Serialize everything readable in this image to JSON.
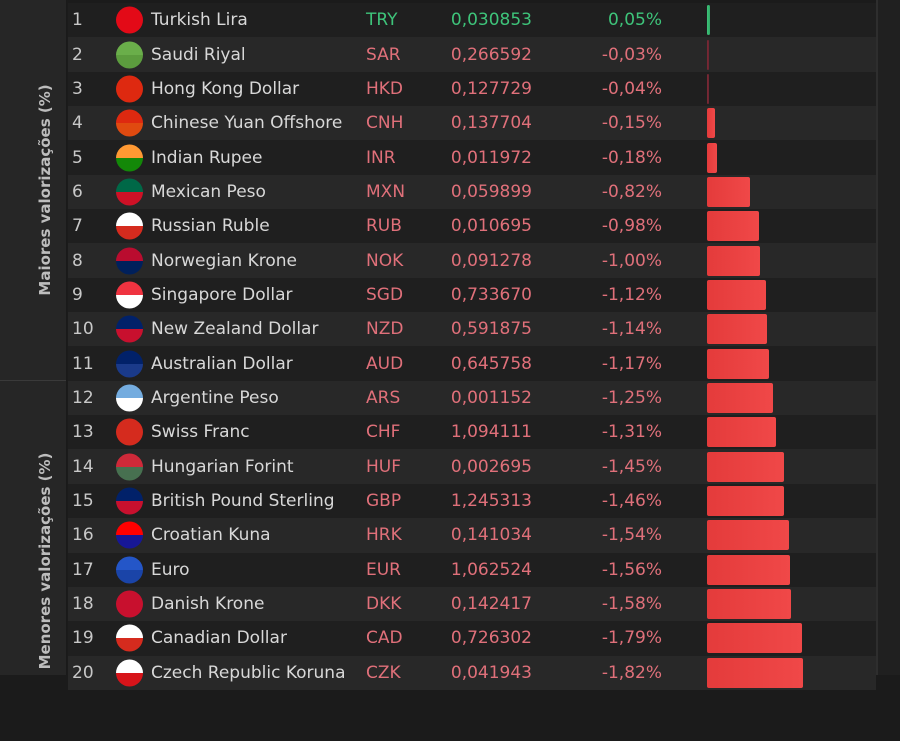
{
  "sidebar": {
    "top_group": "Maiores valorizações (%)",
    "bottom_group": "Menores valorizações (%)"
  },
  "colors": {
    "positive": "#3ec47a",
    "negative": "#e43b3b",
    "negative_text": "#e0707a"
  },
  "rows": [
    {
      "rank": "1",
      "name": "Turkish Lira",
      "code": "TRY",
      "value": "0,030853",
      "change": "0,05%",
      "pct": 0.05,
      "flag": [
        "#e30a17",
        "#e30a17"
      ]
    },
    {
      "rank": "2",
      "name": "Saudi Riyal",
      "code": "SAR",
      "value": "0,266592",
      "change": "-0,03%",
      "pct": -0.03,
      "flag": [
        "#6aae4a",
        "#5c9c3e"
      ]
    },
    {
      "rank": "3",
      "name": "Hong Kong Dollar",
      "code": "HKD",
      "value": "0,127729",
      "change": "-0,04%",
      "pct": -0.04,
      "flag": [
        "#de2910",
        "#de2910"
      ]
    },
    {
      "rank": "4",
      "name": "Chinese Yuan Offshore",
      "code": "CNH",
      "value": "0,137704",
      "change": "-0,15%",
      "pct": -0.15,
      "flag": [
        "#de2910",
        "#e04a10"
      ]
    },
    {
      "rank": "5",
      "name": "Indian Rupee",
      "code": "INR",
      "value": "0,011972",
      "change": "-0,18%",
      "pct": -0.18,
      "flag": [
        "#ff9933",
        "#138808"
      ]
    },
    {
      "rank": "6",
      "name": "Mexican Peso",
      "code": "MXN",
      "value": "0,059899",
      "change": "-0,82%",
      "pct": -0.82,
      "flag": [
        "#006847",
        "#ce1126"
      ]
    },
    {
      "rank": "7",
      "name": "Russian Ruble",
      "code": "RUB",
      "value": "0,010695",
      "change": "-0,98%",
      "pct": -0.98,
      "flag": [
        "#ffffff",
        "#d52b1e"
      ]
    },
    {
      "rank": "8",
      "name": "Norwegian Krone",
      "code": "NOK",
      "value": "0,091278",
      "change": "-1,00%",
      "pct": -1.0,
      "flag": [
        "#ba0c2f",
        "#00205b"
      ]
    },
    {
      "rank": "9",
      "name": "Singapore Dollar",
      "code": "SGD",
      "value": "0,733670",
      "change": "-1,12%",
      "pct": -1.12,
      "flag": [
        "#ef3340",
        "#ffffff"
      ]
    },
    {
      "rank": "10",
      "name": "New Zealand Dollar",
      "code": "NZD",
      "value": "0,591875",
      "change": "-1,14%",
      "pct": -1.14,
      "flag": [
        "#012169",
        "#c8102e"
      ]
    },
    {
      "rank": "11",
      "name": "Australian Dollar",
      "code": "AUD",
      "value": "0,645758",
      "change": "-1,17%",
      "pct": -1.17,
      "flag": [
        "#012169",
        "#1a3a8a"
      ]
    },
    {
      "rank": "12",
      "name": "Argentine Peso",
      "code": "ARS",
      "value": "0,001152",
      "change": "-1,25%",
      "pct": -1.25,
      "flag": [
        "#74acdf",
        "#ffffff"
      ]
    },
    {
      "rank": "13",
      "name": "Swiss Franc",
      "code": "CHF",
      "value": "1,094111",
      "change": "-1,31%",
      "pct": -1.31,
      "flag": [
        "#d52b1e",
        "#d52b1e"
      ]
    },
    {
      "rank": "14",
      "name": "Hungarian Forint",
      "code": "HUF",
      "value": "0,002695",
      "change": "-1,45%",
      "pct": -1.45,
      "flag": [
        "#ce2939",
        "#477050"
      ]
    },
    {
      "rank": "15",
      "name": "British Pound Sterling",
      "code": "GBP",
      "value": "1,245313",
      "change": "-1,46%",
      "pct": -1.46,
      "flag": [
        "#012169",
        "#c8102e"
      ]
    },
    {
      "rank": "16",
      "name": "Croatian Kuna",
      "code": "HRK",
      "value": "0,141034",
      "change": "-1,54%",
      "pct": -1.54,
      "flag": [
        "#ff0000",
        "#171796"
      ]
    },
    {
      "rank": "17",
      "name": "Euro",
      "code": "EUR",
      "value": "1,062524",
      "change": "-1,56%",
      "pct": -1.56,
      "flag": [
        "#2456c8",
        "#1a44a8"
      ]
    },
    {
      "rank": "18",
      "name": "Danish Krone",
      "code": "DKK",
      "value": "0,142417",
      "change": "-1,58%",
      "pct": -1.58,
      "flag": [
        "#c8102e",
        "#c8102e"
      ]
    },
    {
      "rank": "19",
      "name": "Canadian Dollar",
      "code": "CAD",
      "value": "0,726302",
      "change": "-1,79%",
      "pct": -1.79,
      "flag": [
        "#ffffff",
        "#d52b1e"
      ]
    },
    {
      "rank": "20",
      "name": "Czech Republic Koruna",
      "code": "CZK",
      "value": "0,041943",
      "change": "-1,82%",
      "pct": -1.82,
      "flag": [
        "#ffffff",
        "#d7141a"
      ]
    }
  ]
}
